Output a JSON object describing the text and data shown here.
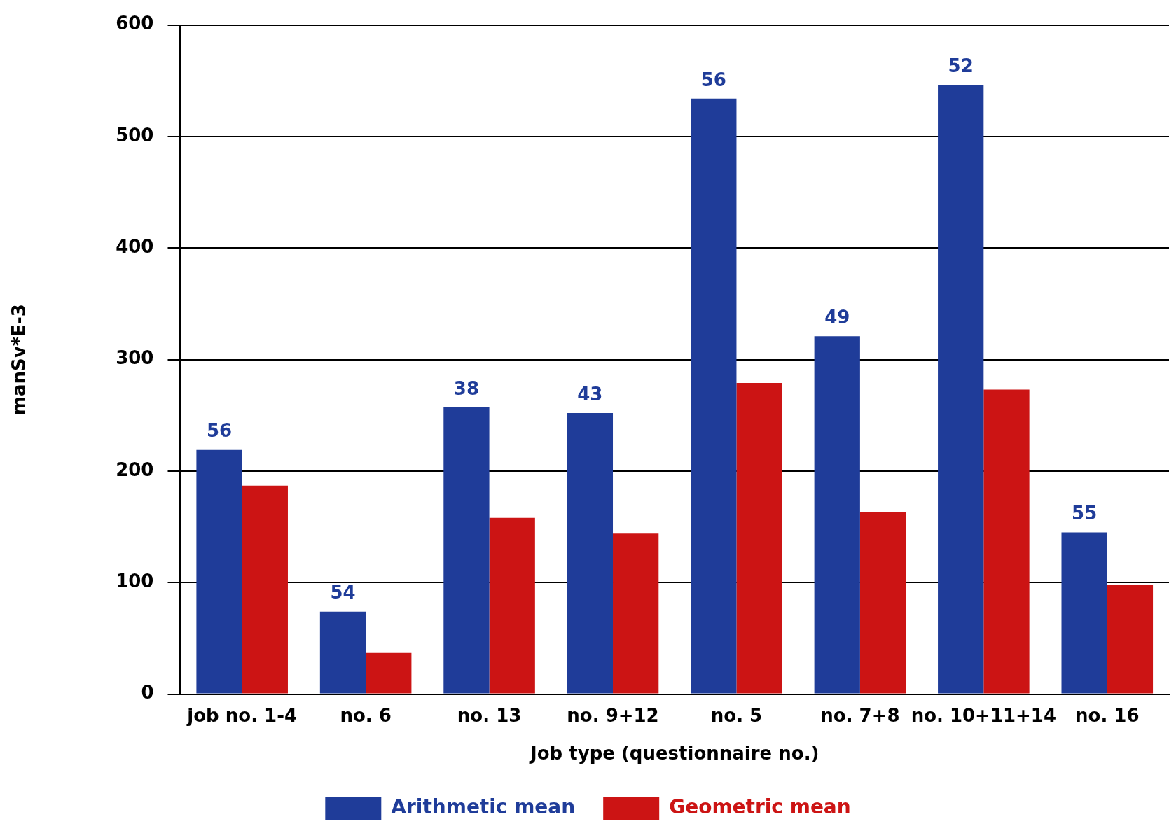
{
  "chart_data": {
    "type": "bar",
    "xlabel": "Job type (questionnaire no.)",
    "ylabel": "manSv*E-3",
    "categories": [
      "job no. 1-4",
      "no. 6",
      "no. 13",
      "no. 9+12",
      "no. 5",
      "no. 7+8",
      "no. 10+11+14",
      "no. 16"
    ],
    "series": [
      {
        "name": "Arithmetic mean",
        "color": "#1f3c99",
        "values": [
          219,
          74,
          257,
          252,
          534,
          321,
          546,
          145
        ]
      },
      {
        "name": "Geometric mean",
        "color": "#cc1414",
        "values": [
          187,
          37,
          158,
          144,
          279,
          163,
          273,
          98
        ]
      }
    ],
    "annotations": [
      {
        "text": "56",
        "x": "job no. 1-4",
        "y": 219
      },
      {
        "text": "54",
        "x": "no. 6",
        "y": 74
      },
      {
        "text": "38",
        "x": "no. 13",
        "y": 257
      },
      {
        "text": "43",
        "x": "no. 9+12",
        "y": 252
      },
      {
        "text": "56",
        "x": "no. 5",
        "y": 534
      },
      {
        "text": "49",
        "x": "no. 7+8",
        "y": 321
      },
      {
        "text": "52",
        "x": "no. 10+11+14",
        "y": 546
      },
      {
        "text": "55",
        "x": "no. 16",
        "y": 145
      }
    ],
    "ylim": [
      0,
      600
    ],
    "yticks": [
      0,
      100,
      200,
      300,
      400,
      500,
      600
    ],
    "grid": "y",
    "legend": "bottom"
  }
}
